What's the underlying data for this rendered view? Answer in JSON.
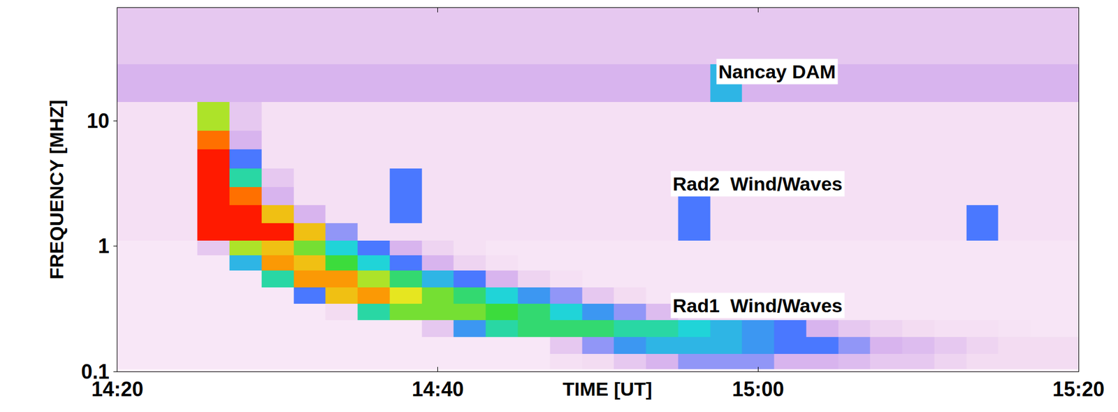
{
  "chart_data": {
    "type": "heatmap",
    "x_label": "TIME [UT]",
    "y_label": "FREQUENCY [MHZ]",
    "annotations": [
      "Nancay DAM",
      "Rad2  Wind/Waves",
      "Rad1  Wind/Waves"
    ],
    "log": "y",
    "grid": false,
    "xlim": [
      860,
      920
    ],
    "xticks": [
      {
        "value": 860,
        "label": "14:20"
      },
      {
        "value": 880,
        "label": "14:40"
      },
      {
        "value": 900,
        "label": "15:00"
      },
      {
        "value": 920,
        "label": "15:20"
      }
    ],
    "ylim": [
      0.1,
      80
    ],
    "yticks": [
      0.1,
      1,
      10
    ],
    "zlim": [
      0,
      10
    ],
    "x": [
      860,
      862,
      864,
      866,
      868,
      870,
      872,
      874,
      876,
      878,
      880,
      882,
      884,
      886,
      888,
      890,
      892,
      894,
      896,
      898,
      900,
      902,
      904,
      906,
      908,
      910,
      912,
      914,
      916,
      918,
      920
    ],
    "y": [
      0.12,
      0.16,
      0.22,
      0.3,
      0.4,
      0.55,
      0.75,
      0.95,
      1.3,
      1.8,
      2.5,
      3.5,
      5,
      7,
      10,
      20,
      40,
      70
    ],
    "z": [
      [
        0.5,
        0.5,
        0.5,
        0.5,
        0.5,
        0.5,
        0.5,
        0.5,
        0.5,
        0.5,
        0.5,
        0.5,
        0.5,
        0.5,
        0.8,
        1,
        1.5,
        2,
        2.5,
        2.5,
        2.5,
        2,
        2,
        1.8,
        1.5,
        1.5,
        1.2,
        1,
        1,
        1,
        1
      ],
      [
        0.5,
        0.5,
        0.5,
        0.5,
        0.5,
        0.5,
        0.5,
        0.5,
        0.5,
        0.5,
        0.5,
        0.5,
        0.5,
        0.5,
        1.5,
        2.5,
        3.5,
        4,
        4,
        4,
        3.5,
        3,
        3,
        2.5,
        2,
        1.8,
        1.5,
        1.2,
        1,
        1,
        1
      ],
      [
        0.5,
        0.5,
        0.5,
        0.5,
        0.5,
        0.5,
        0.5,
        0.5,
        0.5,
        0.5,
        1.5,
        3.5,
        5,
        5.5,
        5.5,
        5.5,
        5,
        5,
        4.5,
        4,
        3.5,
        3,
        2,
        1.5,
        1.2,
        1,
        0.8,
        0.8,
        0.7,
        0.6,
        0.6
      ],
      [
        0.5,
        0.5,
        0.5,
        0.5,
        0.5,
        0.5,
        0.5,
        1,
        5,
        6.5,
        6.5,
        6.5,
        6,
        5.5,
        4.5,
        3.5,
        2.5,
        1.8,
        1.3,
        1,
        0.8,
        0.6,
        0.6,
        0.6,
        0.6,
        0.6,
        0.6,
        0.6,
        0.6,
        0.6,
        0.6
      ],
      [
        0.5,
        0.5,
        0.5,
        0.5,
        0.5,
        0.5,
        3,
        8,
        8.5,
        7.5,
        6.5,
        5.5,
        4.5,
        3.5,
        2.5,
        1.5,
        1,
        0.6,
        0.6,
        0.6,
        0.6,
        0.6,
        0.6,
        0.6,
        0.6,
        0.6,
        0.6,
        0.6,
        0.6,
        0.6,
        0.6
      ],
      [
        0.5,
        0.5,
        0.5,
        0.5,
        0.5,
        5,
        8.5,
        8.5,
        7,
        5.5,
        4,
        3,
        2,
        1.2,
        0.8,
        0.6,
        0.6,
        0.6,
        0.6,
        0.6,
        0.6,
        0.6,
        0.6,
        0.6,
        0.6,
        0.6,
        0.6,
        0.6,
        0.6,
        0.6,
        0.6
      ],
      [
        0.5,
        0.5,
        0.5,
        0.5,
        4,
        8.5,
        8,
        6,
        4.5,
        3,
        2,
        1.2,
        0.8,
        0.6,
        0.6,
        0.6,
        0.6,
        0.6,
        0.6,
        0.6,
        0.6,
        0.6,
        0.6,
        0.6,
        0.6,
        0.6,
        0.6,
        0.6,
        0.6,
        0.6,
        0.6
      ],
      [
        0.5,
        0.5,
        0.5,
        1.5,
        7,
        8,
        6.5,
        4.5,
        3,
        2,
        1.2,
        0.8,
        0.6,
        0.6,
        0.6,
        0.6,
        0.6,
        0.6,
        0.6,
        0.6,
        0.6,
        0.6,
        0.6,
        0.6,
        0.6,
        0.6,
        0.6,
        0.6,
        0.6,
        0.6,
        0.6
      ],
      [
        0.8,
        0.8,
        0.8,
        10,
        10,
        10,
        8,
        2.5,
        0.8,
        0.8,
        0.8,
        0.8,
        0.8,
        0.8,
        0.8,
        0.8,
        0.8,
        0.8,
        3,
        0.8,
        0.8,
        0.8,
        0.8,
        0.8,
        0.8,
        0.8,
        0.8,
        3,
        0.8,
        0.8,
        0.8
      ],
      [
        0.8,
        0.8,
        0.8,
        10,
        10,
        8,
        2,
        0.8,
        0.8,
        3,
        0.8,
        0.8,
        0.8,
        0.8,
        0.8,
        0.8,
        0.8,
        0.8,
        3,
        0.8,
        0.8,
        0.8,
        0.8,
        0.8,
        0.8,
        0.8,
        0.8,
        3,
        0.8,
        0.8,
        0.8
      ],
      [
        0.8,
        0.8,
        0.8,
        10,
        9,
        2,
        0.8,
        0.8,
        0.8,
        3,
        0.8,
        0.8,
        0.8,
        0.8,
        0.8,
        0.8,
        0.8,
        0.8,
        3,
        0.8,
        0.8,
        0.8,
        0.8,
        0.8,
        0.8,
        0.8,
        0.8,
        0.8,
        0.8,
        0.8,
        0.8
      ],
      [
        0.8,
        0.8,
        0.8,
        10,
        5,
        1.5,
        0.8,
        0.8,
        0.8,
        3,
        0.8,
        0.8,
        0.8,
        0.8,
        0.8,
        0.8,
        0.8,
        0.8,
        0.8,
        0.8,
        0.8,
        0.8,
        0.8,
        0.8,
        0.8,
        0.8,
        0.8,
        0.8,
        0.8,
        0.8,
        0.8
      ],
      [
        0.8,
        0.8,
        0.8,
        10,
        3,
        0.8,
        0.8,
        0.8,
        0.8,
        0.8,
        0.8,
        0.8,
        0.8,
        0.8,
        0.8,
        0.8,
        0.8,
        0.8,
        0.8,
        0.8,
        0.8,
        0.8,
        0.8,
        0.8,
        0.8,
        0.8,
        0.8,
        0.8,
        0.8,
        0.8,
        0.8
      ],
      [
        0.8,
        0.8,
        0.8,
        9,
        2,
        0.8,
        0.8,
        0.8,
        0.8,
        0.8,
        0.8,
        0.8,
        0.8,
        0.8,
        0.8,
        0.8,
        0.8,
        0.8,
        0.8,
        0.8,
        0.8,
        0.8,
        0.8,
        0.8,
        0.8,
        0.8,
        0.8,
        0.8,
        0.8,
        0.8,
        0.8
      ],
      [
        0.8,
        0.8,
        0.8,
        7,
        1.5,
        0.8,
        0.8,
        0.8,
        0.8,
        0.8,
        0.8,
        0.8,
        0.8,
        0.8,
        0.8,
        0.8,
        0.8,
        0.8,
        0.8,
        0.8,
        0.8,
        0.8,
        0.8,
        0.8,
        0.8,
        0.8,
        0.8,
        0.8,
        0.8,
        0.8,
        0.8
      ],
      [
        2,
        2,
        2,
        2,
        2,
        2,
        2,
        2,
        2,
        2,
        2,
        2,
        2,
        2,
        2,
        2,
        2,
        2,
        2,
        4,
        2,
        2,
        2,
        2,
        2,
        2,
        2,
        2,
        2,
        2,
        2
      ],
      [
        1.5,
        1.5,
        1.5,
        1.5,
        1.5,
        1.5,
        1.5,
        1.5,
        1.5,
        1.5,
        1.5,
        1.5,
        1.5,
        1.5,
        1.5,
        1.5,
        1.5,
        1.5,
        1.5,
        1.5,
        1.5,
        1.5,
        1.5,
        1.5,
        1.5,
        1.5,
        1.5,
        1.5,
        1.5,
        1.5,
        1.5
      ],
      [
        1.5,
        1.5,
        1.5,
        1.5,
        1.5,
        1.5,
        1.5,
        1.5,
        1.5,
        1.5,
        1.5,
        1.5,
        1.5,
        1.5,
        1.5,
        1.5,
        1.5,
        1.5,
        1.5,
        1.5,
        1.5,
        1.5,
        1.5,
        1.5,
        1.5,
        1.5,
        1.5,
        1.5,
        1.5,
        1.5,
        1.5
      ]
    ]
  }
}
